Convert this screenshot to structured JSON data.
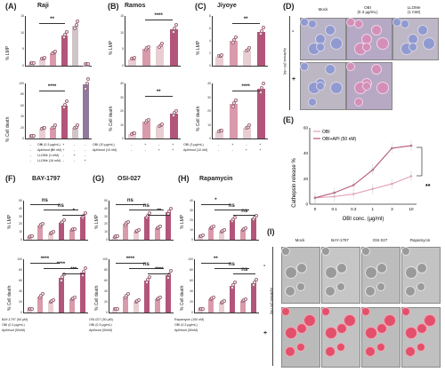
{
  "panels": {
    "A": {
      "letter": "(A)",
      "title": "Raji",
      "y_top": "% LMP",
      "y_bottom": "% Cell death",
      "top_ticks": [
        "0",
        "5",
        "10",
        "15"
      ],
      "bottom_ticks": [
        "0",
        "20",
        "40",
        "60",
        "80",
        "100"
      ],
      "sig_top": "**",
      "sig_bottom": "****",
      "conditions": [
        "OBI (0.3 µg/mL)",
        "Apilimod (50 nM)",
        "LLOMe (1 mM)",
        "LLOMe (10 mM)"
      ],
      "marks": [
        [
          "-",
          "+",
          "-",
          "+",
          "-",
          "-"
        ],
        [
          "-",
          "-",
          "+",
          "+",
          "-",
          "-"
        ],
        [
          "-",
          "-",
          "-",
          "-",
          "+",
          "-"
        ],
        [
          "-",
          "-",
          "-",
          "-",
          "-",
          "+"
        ]
      ],
      "top_values": [
        0.5,
        2,
        3.8,
        9,
        12,
        0
      ],
      "bottom_values": [
        3,
        17,
        20,
        60,
        20,
        98
      ]
    },
    "B": {
      "letter": "(B)",
      "title": "Ramos",
      "y_top": "% LMP",
      "y_bottom": "% Cell death",
      "top_ticks": [
        "0",
        "5",
        "10",
        "15"
      ],
      "bottom_ticks": [
        "0",
        "10",
        "20",
        "30",
        "40"
      ],
      "sig_top": "****",
      "sig_bottom": "**",
      "conditions": [
        "OBI (10 µg/mL)",
        "Apilimod (10 nM)"
      ],
      "marks": [
        [
          "-",
          "+",
          "-",
          "+"
        ],
        [
          "-",
          "-",
          "+",
          "+"
        ]
      ],
      "top_values": [
        2,
        5,
        6,
        11
      ],
      "bottom_values": [
        3,
        12,
        9,
        18
      ]
    },
    "C": {
      "letter": "(C)",
      "title": "Jiyoye",
      "y_top": "% LMP",
      "y_bottom": "% Cell death",
      "top_ticks": [
        "0",
        "2",
        "4",
        "6",
        "8"
      ],
      "bottom_ticks": [
        "0",
        "10",
        "20",
        "30",
        "40"
      ],
      "sig_top": "**",
      "sig_bottom": "****",
      "conditions": [
        "OBI (3 µg/mL)",
        "Apilimod (10 nM)"
      ],
      "marks": [
        [
          "-",
          "+",
          "-",
          "+"
        ],
        [
          "-",
          "-",
          "+",
          "+"
        ]
      ],
      "top_values": [
        1.5,
        4,
        2.5,
        5.5
      ],
      "bottom_values": [
        5,
        25,
        8,
        36
      ]
    },
    "D": {
      "letter": "(D)",
      "columns": [
        "Mock",
        "OBI\n(0.3 µg/mL)",
        "LLOMe\n(1 mM)"
      ],
      "side": "Apilimod (50 nM)",
      "minus": "-",
      "plus": "+"
    },
    "E": {
      "letter": "(E)",
      "ylabel": "Cathepsin release %",
      "xlabel": "OBI conc. (µg/ml)",
      "sig": "**",
      "legend": [
        "OBI",
        "OBI+API (50 nM)"
      ]
    },
    "F": {
      "letter": "(F)",
      "title": "BAY-1797",
      "y_top": "% LMP",
      "y_bottom": "% Cell death",
      "top_ticks": [
        "0",
        "10",
        "20",
        "30",
        "40",
        "50"
      ],
      "bottom_ticks": [
        "0",
        "20",
        "40",
        "60",
        "80",
        "100"
      ],
      "sig_top": [
        "ns",
        "ns",
        "*"
      ],
      "sig_bottom": [
        "****",
        "****",
        "***"
      ],
      "conditions": [
        "BAY-1797 (50 µM)",
        "OBI (0.3 µg/mL)",
        "Apilimod (50nM)"
      ],
      "top_values": [
        3,
        18,
        8,
        22,
        12,
        30
      ],
      "bottom_values": [
        5,
        30,
        20,
        65,
        25,
        75
      ]
    },
    "G": {
      "letter": "(G)",
      "title": "OSI-027",
      "y_top": "% LMP",
      "y_bottom": "% Cell death",
      "top_ticks": [
        "0",
        "10",
        "20",
        "30",
        "40",
        "50"
      ],
      "bottom_ticks": [
        "0",
        "20",
        "40",
        "60",
        "80",
        "100"
      ],
      "sig_top": [
        "ns",
        "ns",
        "**"
      ],
      "sig_bottom": [
        "****",
        "ns",
        "****"
      ],
      "conditions": [
        "OSI-027 (50 µM)",
        "OBI (0.3 µg/mL)",
        "Apilimod (50nM)"
      ],
      "top_values": [
        3,
        20,
        10,
        30,
        15,
        35
      ],
      "bottom_values": [
        5,
        30,
        20,
        60,
        25,
        70
      ]
    },
    "H": {
      "letter": "(H)",
      "title": "Rapamycin",
      "y_top": "% LMP",
      "y_bottom": "% Cell death",
      "top_ticks": [
        "0",
        "10",
        "20",
        "30",
        "40"
      ],
      "bottom_ticks": [
        "0",
        "20",
        "40",
        "60",
        "80",
        "100"
      ],
      "sig_top": [
        "*",
        "ns",
        "ns"
      ],
      "sig_bottom": [
        "**",
        "ns",
        "ns"
      ],
      "conditions": [
        "Rapamycin (100 nM)",
        "OBI (0.3 µg/mL)",
        "Apilimod (50nM)"
      ],
      "top_values": [
        3,
        12,
        8,
        20,
        10,
        22
      ],
      "bottom_values": [
        5,
        25,
        18,
        50,
        22,
        55
      ]
    },
    "I": {
      "letter": "(I)",
      "columns": [
        "Mock",
        "BAY-1797",
        "OSI-027",
        "Rapamycin"
      ],
      "side": "Apilimod (50 nM)",
      "minus": "-",
      "plus": "+"
    }
  },
  "chart_data": {
    "type": "line",
    "x": [
      "0",
      "0.1",
      "0.3",
      "1",
      "3",
      "10"
    ],
    "xlabel": "OBI conc. (µg/ml)",
    "ylabel": "Cathepsin release %",
    "ylim": [
      0,
      60
    ],
    "yticks": [
      "0",
      "20",
      "40",
      "60"
    ],
    "series": [
      {
        "name": "OBI",
        "values": [
          5,
          6,
          8,
          12,
          16,
          22
        ],
        "color": "#e3a2b5"
      },
      {
        "name": "OBI+API (50 nM)",
        "values": [
          5,
          9,
          15,
          27,
          44,
          46
        ],
        "color": "#b55a76"
      }
    ]
  },
  "colors": {
    "bar_light": "#e8cdd2",
    "bar_mid": "#d99aab",
    "bar_dark": "#b3557a",
    "bar_purple": "#8f7a9d",
    "bar_gray": "#cfc5c8"
  }
}
